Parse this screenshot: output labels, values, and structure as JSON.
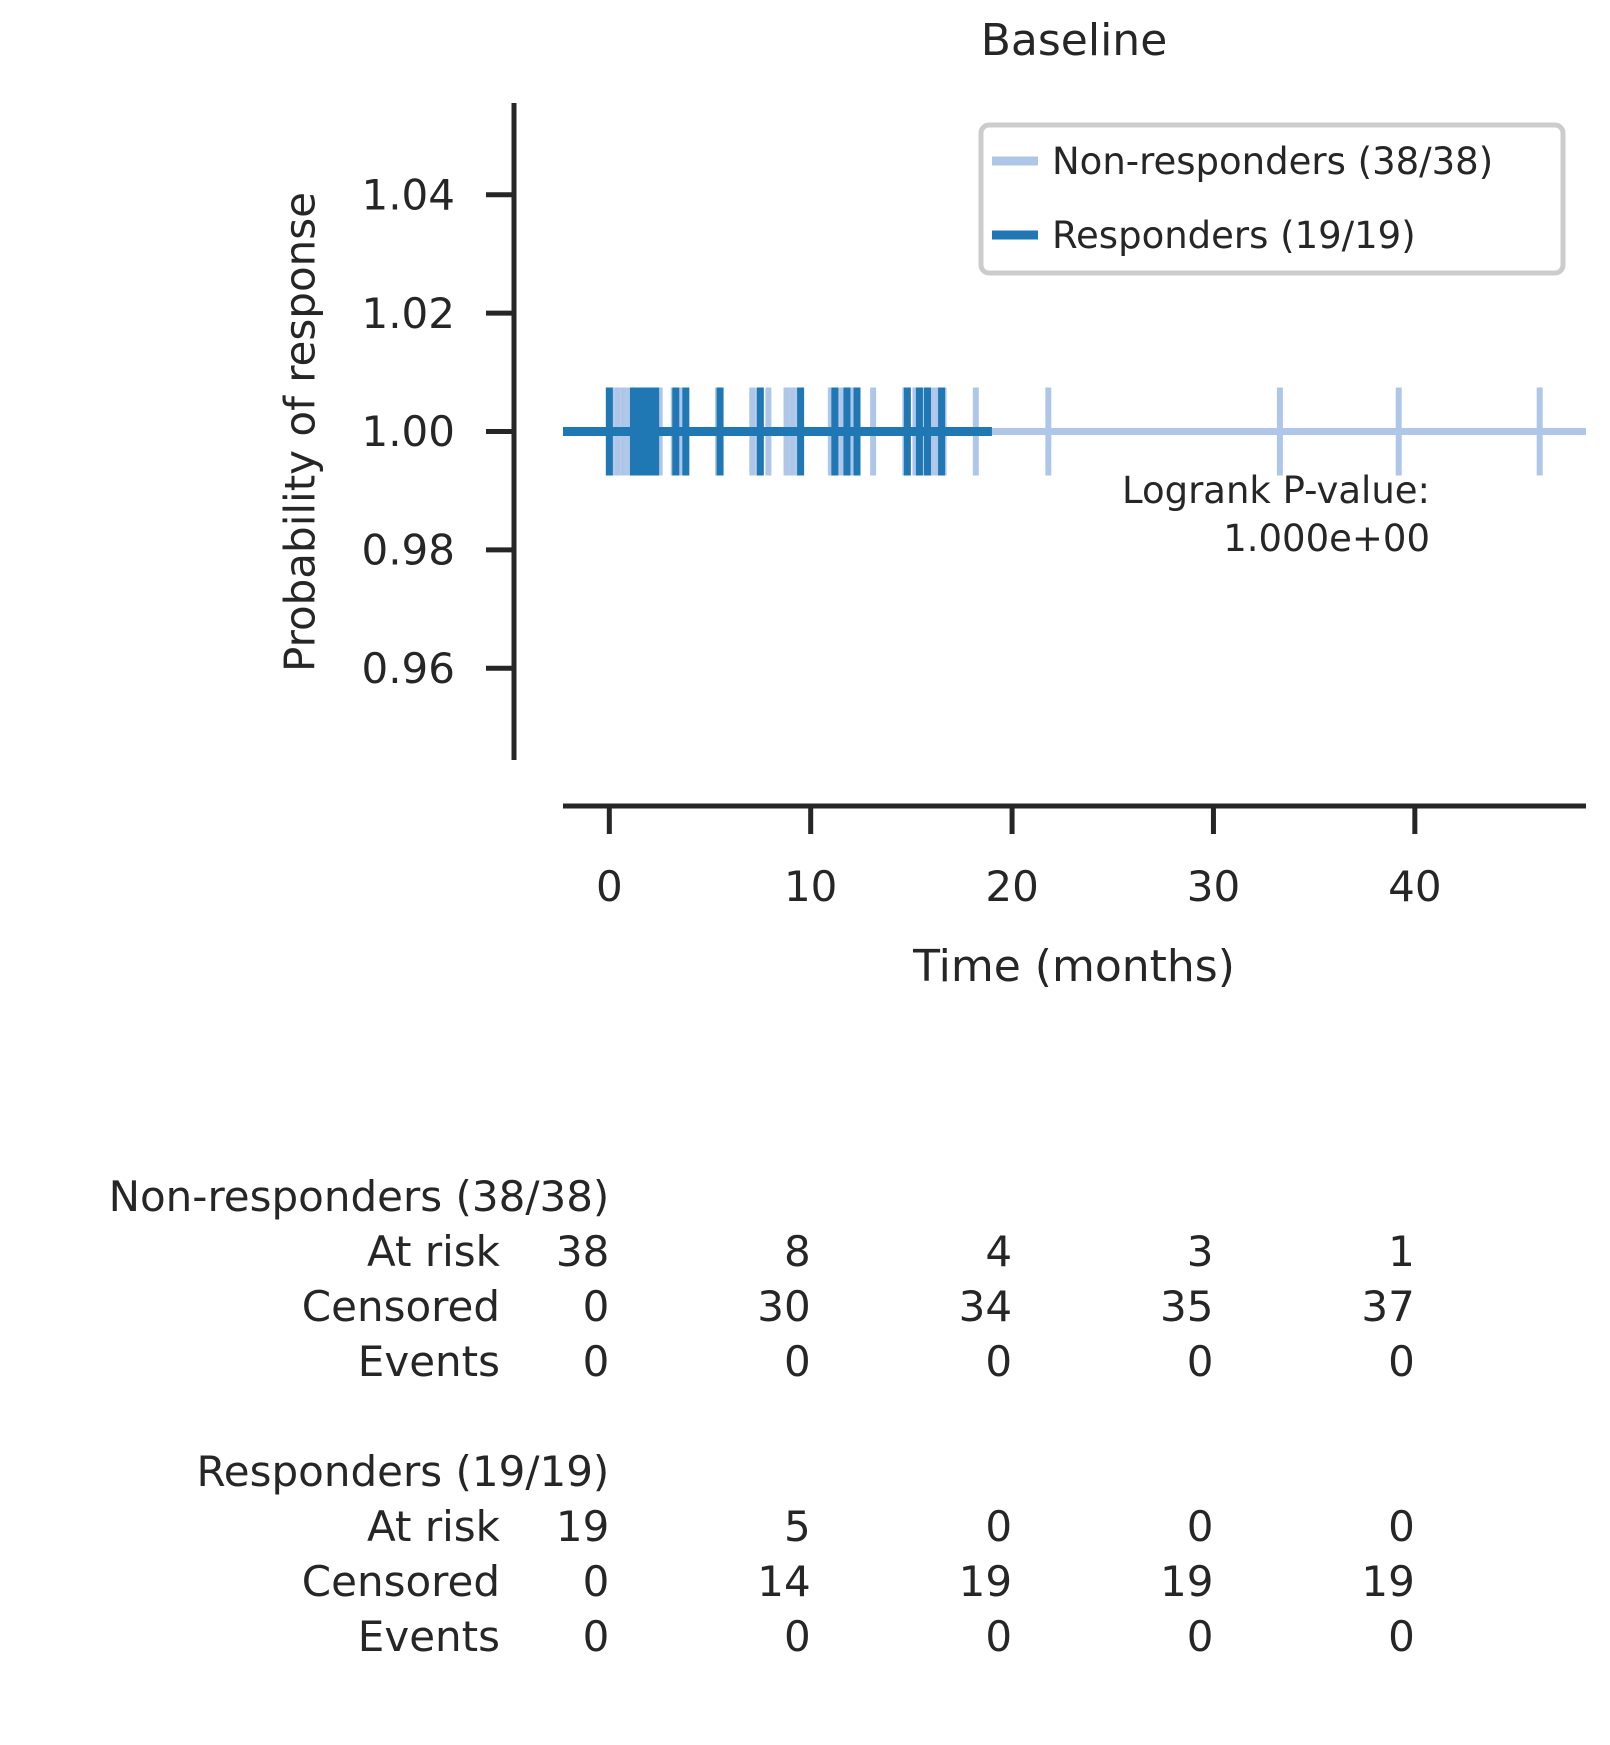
{
  "chart_data": {
    "type": "line",
    "subtype": "kaplan-meier survival curve with censoring marks",
    "title": "Baseline",
    "xlabel": "Time (months)",
    "ylabel": "Probability of response",
    "xlim": [
      -2.3,
      48.5
    ],
    "ylim": [
      0.9445,
      1.0555
    ],
    "xticks": [
      0,
      10,
      20,
      30,
      40
    ],
    "yticks": [
      0.96,
      0.98,
      1.0,
      1.02,
      1.04
    ],
    "ytick_labels": [
      "0.96",
      "0.98",
      "1.00",
      "1.02",
      "1.04"
    ],
    "grid": false,
    "legend_position": "top-right",
    "series": [
      {
        "name": "Non-responders (38/38)",
        "color": "#aec7e8",
        "survival": {
          "x": [
            -2.3,
            48.5
          ],
          "y": [
            1.0,
            1.0
          ]
        },
        "censor_times": [
          0.1,
          0.4,
          0.7,
          1.0,
          1.3,
          1.6,
          1.9,
          2.2,
          2.5,
          3.2,
          3.6,
          5.4,
          7.1,
          7.4,
          7.9,
          8.8,
          9.1,
          9.4,
          11.0,
          11.3,
          11.6,
          12.0,
          12.3,
          13.1,
          14.7,
          15.2,
          15.6,
          16.0,
          16.3,
          16.6,
          18.2,
          21.8,
          33.3,
          39.2,
          46.2
        ]
      },
      {
        "name": "Responders (19/19)",
        "color": "#1f77b4",
        "survival": {
          "x": [
            -2.3,
            19.0
          ],
          "y": [
            1.0,
            1.0
          ]
        },
        "censor_times": [
          0.0,
          1.2,
          1.5,
          1.8,
          2.0,
          2.3,
          3.3,
          3.8,
          5.5,
          7.5,
          9.5,
          11.2,
          11.8,
          12.3,
          14.8,
          15.4,
          15.8,
          16.5
        ]
      }
    ],
    "annotation": {
      "line1": "Logrank P-value:",
      "line2": "1.000e+00"
    },
    "at_risk_table": {
      "times": [
        0,
        10,
        20,
        30,
        40
      ],
      "groups": [
        {
          "label": "Non-responders (38/38)",
          "rows": [
            {
              "label": "At risk",
              "values": [
                "38",
                "8",
                "4",
                "3",
                "1"
              ]
            },
            {
              "label": "Censored",
              "values": [
                "0",
                "30",
                "34",
                "35",
                "37"
              ]
            },
            {
              "label": "Events",
              "values": [
                "0",
                "0",
                "0",
                "0",
                "0"
              ]
            }
          ]
        },
        {
          "label": "Responders (19/19)",
          "rows": [
            {
              "label": "At risk",
              "values": [
                "19",
                "5",
                "0",
                "0",
                "0"
              ]
            },
            {
              "label": "Censored",
              "values": [
                "0",
                "14",
                "19",
                "19",
                "19"
              ]
            },
            {
              "label": "Events",
              "values": [
                "0",
                "0",
                "0",
                "0",
                "0"
              ]
            }
          ]
        }
      ]
    }
  }
}
